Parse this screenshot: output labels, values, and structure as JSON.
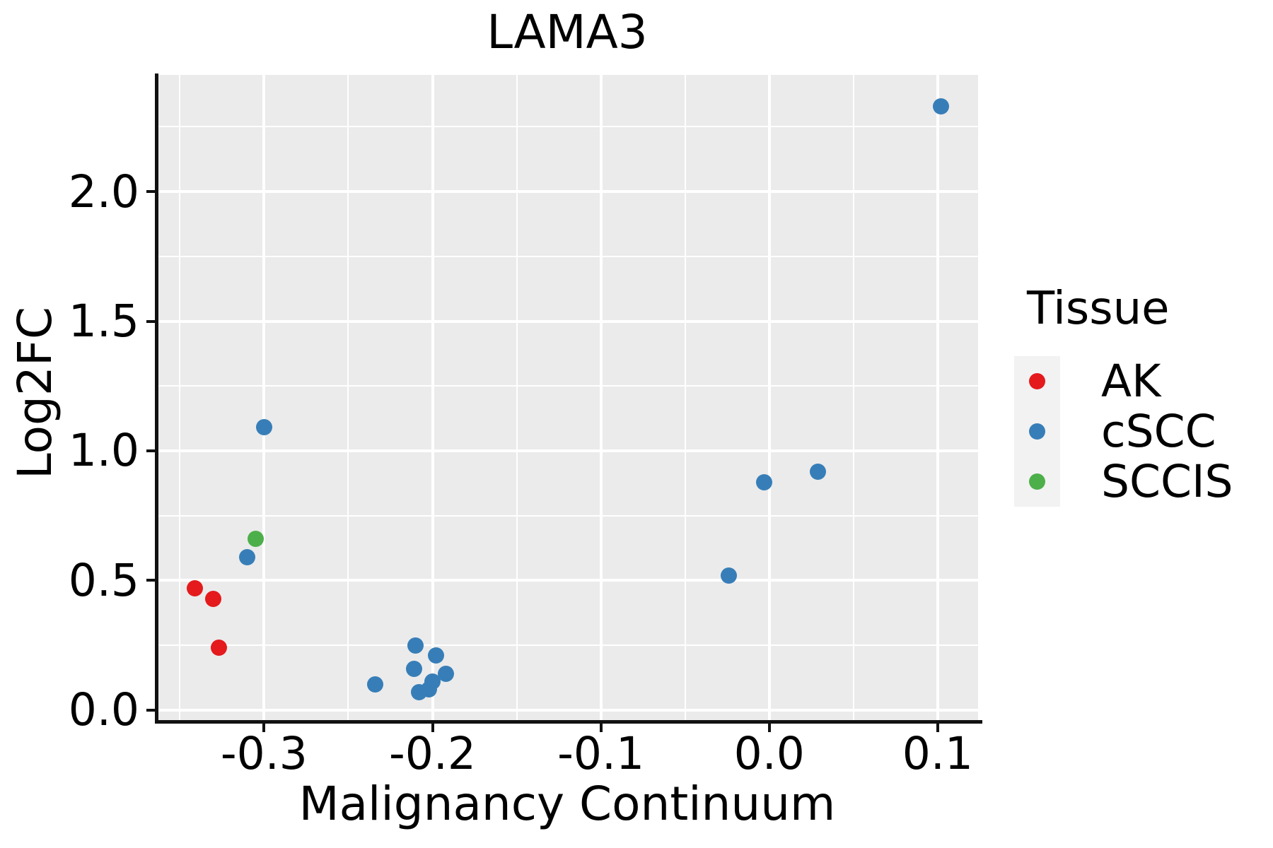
{
  "figure": {
    "background": "#ffffff"
  },
  "chart_data": {
    "type": "scatter",
    "title": "LAMA3",
    "xlabel": "Malignancy Continuum",
    "ylabel": "Log2FC",
    "xlim": [
      -0.364,
      0.124
    ],
    "ylim": [
      -0.044,
      2.45
    ],
    "xticks": [
      -0.3,
      -0.2,
      -0.1,
      0.0,
      0.1
    ],
    "xtick_labels": [
      "-0.3",
      "-0.2",
      "-0.1",
      "0.0",
      "0.1"
    ],
    "yticks": [
      0.0,
      0.5,
      1.0,
      1.5,
      2.0
    ],
    "ytick_labels": [
      "0.0",
      "0.5",
      "1.0",
      "1.5",
      "2.0"
    ],
    "xticks_minor": [
      -0.35,
      -0.25,
      -0.15,
      -0.05,
      0.05
    ],
    "yticks_minor": [
      0.25,
      0.75,
      1.25,
      1.75,
      2.25
    ],
    "grid": true,
    "panel_background": "#EBEBEB",
    "gridline_color": "#FFFFFF",
    "legend": {
      "title": "Tissue",
      "position": "right",
      "key_background": "#F2F2F2",
      "entries": [
        {
          "label": "AK",
          "color": "#E41A1C"
        },
        {
          "label": "cSCC",
          "color": "#377EB8"
        },
        {
          "label": "SCCIS",
          "color": "#4DAF4A"
        }
      ]
    },
    "series": [
      {
        "name": "AK",
        "color": "#E41A1C",
        "points": [
          [
            -0.341,
            0.47
          ],
          [
            -0.33,
            0.43
          ],
          [
            -0.327,
            0.24
          ]
        ]
      },
      {
        "name": "cSCC",
        "color": "#377EB8",
        "points": [
          [
            -0.31,
            0.59
          ],
          [
            -0.3,
            1.09
          ],
          [
            -0.234,
            0.1
          ],
          [
            -0.21,
            0.25
          ],
          [
            -0.211,
            0.16
          ],
          [
            -0.208,
            0.07
          ],
          [
            -0.202,
            0.08
          ],
          [
            -0.2,
            0.11
          ],
          [
            -0.198,
            0.21
          ],
          [
            -0.192,
            0.14
          ],
          [
            -0.024,
            0.52
          ],
          [
            -0.003,
            0.88
          ],
          [
            0.029,
            0.92
          ],
          [
            0.102,
            2.33
          ]
        ]
      },
      {
        "name": "SCCIS",
        "color": "#4DAF4A",
        "points": [
          [
            -0.305,
            0.66
          ]
        ]
      }
    ]
  }
}
